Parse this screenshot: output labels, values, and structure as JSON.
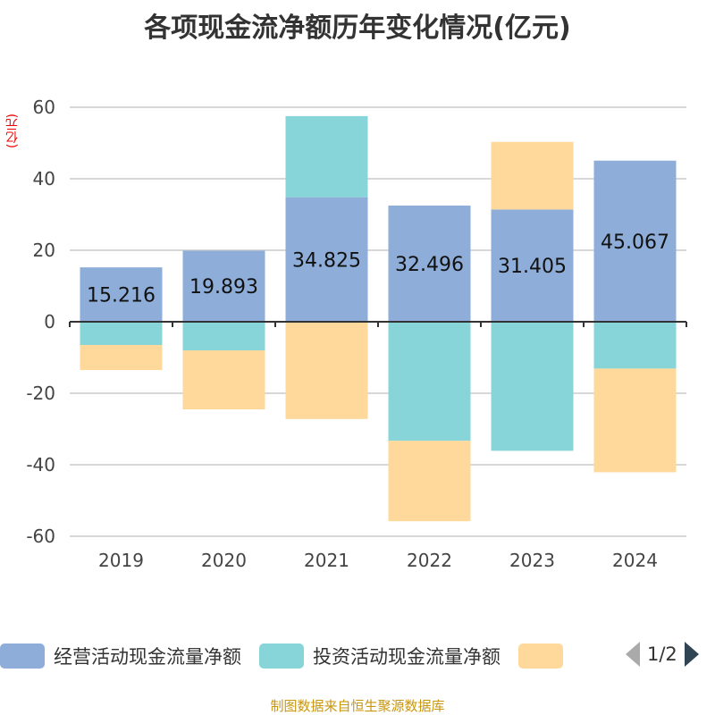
{
  "colors": {
    "operating": "#8eaed9",
    "investing": "#87d5d9",
    "financing": "#fed99b"
  },
  "chart_data": {
    "type": "bar",
    "stacked": true,
    "title": "各项现金流净额历年变化情况(亿元)",
    "ylabel": "(亿元)",
    "categories": [
      "2019",
      "2020",
      "2021",
      "2022",
      "2023",
      "2024"
    ],
    "ylim": [
      -60,
      60
    ],
    "yticks": [
      "60",
      "40",
      "20",
      "0",
      "-20",
      "-40",
      "-60"
    ],
    "grid": true,
    "legend_position": "bottom",
    "series": [
      {
        "name": "经营活动现金流量净额",
        "values": [
          15.216,
          19.893,
          34.825,
          32.496,
          31.405,
          45.067
        ],
        "labels": [
          "15.216",
          "19.893",
          "34.825",
          "32.496",
          "31.405",
          "45.067"
        ]
      },
      {
        "name": "投资活动现金流量净额",
        "values": [
          -6.5,
          -8.0,
          22.7,
          -33.3,
          -36.1,
          -13.1
        ]
      },
      {
        "name": "",
        "values": [
          -7.0,
          -16.5,
          -27.2,
          -22.5,
          18.9,
          -29.0
        ]
      }
    ]
  },
  "legend": {
    "items": [
      "经营活动现金流量净额",
      "投资活动现金流量净额"
    ],
    "page": "1/2"
  },
  "source": "制图数据来自恒生聚源数据库"
}
